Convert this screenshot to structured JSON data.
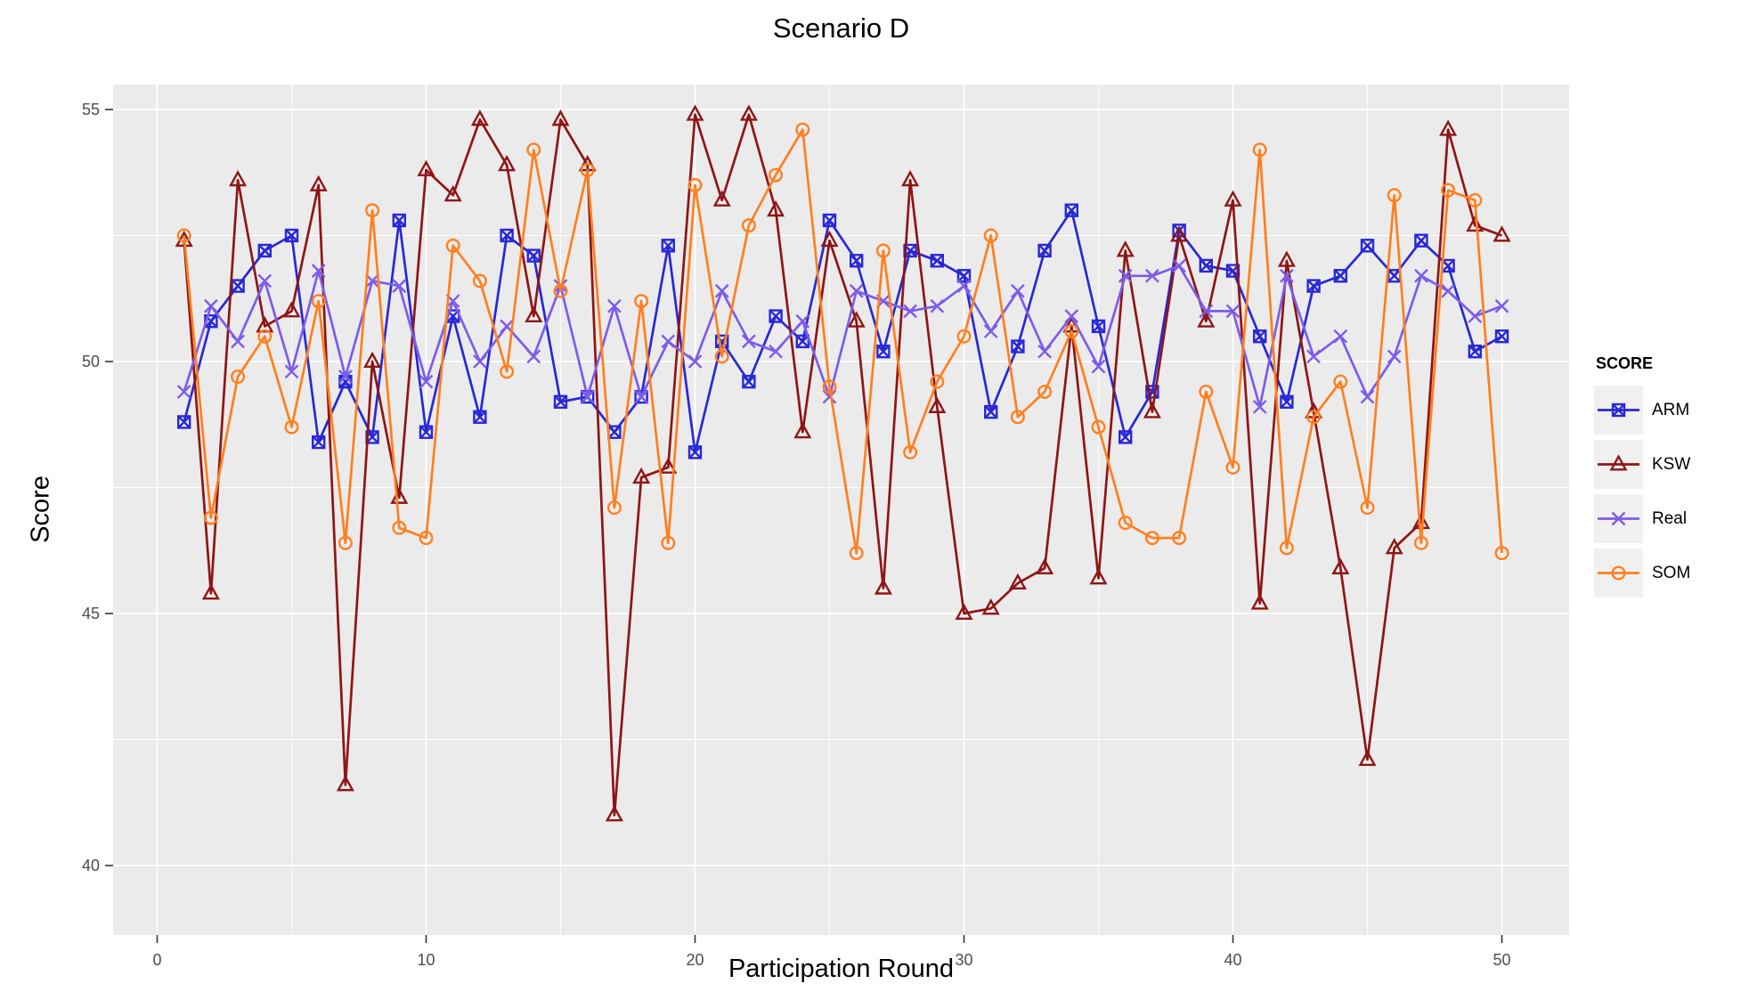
{
  "title": "Scenario D",
  "x_axis": {
    "label": "Participation Round",
    "ticks": [
      0,
      10,
      20,
      30,
      40,
      50
    ],
    "minor_ticks": [
      5,
      15,
      25,
      35,
      45
    ],
    "range": [
      -1.6,
      52.5
    ]
  },
  "y_axis": {
    "label": "Score",
    "ticks": [
      40,
      45,
      50,
      55
    ],
    "minor_ticks": [
      42.5,
      47.5,
      52.5
    ],
    "range": [
      38.6,
      55.5
    ]
  },
  "legend": {
    "title": "SCORE",
    "position": "right"
  },
  "style": {
    "panel_background": "#EBEBEB",
    "grid_color": "#FFFFFF",
    "tick_mark_color": "#333333",
    "tick_label_color": "#4D4D4D",
    "legend_key_background": "#F0F0F0"
  },
  "chart_data": {
    "type": "line",
    "title": "Scenario D",
    "xlabel": "Participation Round",
    "ylabel": "Score",
    "xlim": [
      -1.6,
      52.5
    ],
    "ylim": [
      38.6,
      55.5
    ],
    "grid": true,
    "legend_position": "right",
    "x": [
      1,
      2,
      3,
      4,
      5,
      6,
      7,
      8,
      9,
      10,
      11,
      12,
      13,
      14,
      15,
      16,
      17,
      18,
      19,
      20,
      21,
      22,
      23,
      24,
      25,
      26,
      27,
      28,
      29,
      30,
      31,
      32,
      33,
      34,
      35,
      36,
      37,
      38,
      39,
      40,
      41,
      42,
      43,
      44,
      45,
      46,
      47,
      48,
      49,
      50
    ],
    "series": [
      {
        "name": "ARM",
        "color": "#2828D8",
        "marker": "square-x",
        "values": [
          48.8,
          50.8,
          51.5,
          52.2,
          52.5,
          48.4,
          49.6,
          48.5,
          52.8,
          48.6,
          50.9,
          48.9,
          52.5,
          52.1,
          49.2,
          49.3,
          48.6,
          49.3,
          52.3,
          48.2,
          50.4,
          49.6,
          50.9,
          50.4,
          52.8,
          52.0,
          50.2,
          52.2,
          52.0,
          51.7,
          49.0,
          50.3,
          52.2,
          53.0,
          50.7,
          48.5,
          49.4,
          52.6,
          51.9,
          51.8,
          50.5,
          49.2,
          51.5,
          51.7,
          52.3,
          51.7,
          52.4,
          51.9,
          50.2,
          50.5
        ]
      },
      {
        "name": "KSW",
        "color": "#8F1515",
        "marker": "triangle",
        "values": [
          52.4,
          45.4,
          53.6,
          50.7,
          51.0,
          53.5,
          41.6,
          50.0,
          47.3,
          53.8,
          53.3,
          54.8,
          53.9,
          50.9,
          54.8,
          53.9,
          41.0,
          47.7,
          47.9,
          54.9,
          53.2,
          54.9,
          53.0,
          48.6,
          52.4,
          50.8,
          45.5,
          53.6,
          49.1,
          45.0,
          45.1,
          45.6,
          45.9,
          50.7,
          45.7,
          52.2,
          49.0,
          52.5,
          50.8,
          53.2,
          45.2,
          52.0,
          49.0,
          45.9,
          42.1,
          46.3,
          46.8,
          54.6,
          52.7,
          52.5
        ]
      },
      {
        "name": "Real",
        "color": "#7D5CEA",
        "marker": "x",
        "values": [
          49.4,
          51.1,
          50.4,
          51.6,
          49.8,
          51.8,
          49.7,
          51.6,
          51.5,
          49.6,
          51.2,
          50.0,
          50.7,
          50.1,
          51.5,
          49.3,
          51.1,
          49.3,
          50.4,
          50.0,
          51.4,
          50.4,
          50.2,
          50.8,
          49.3,
          51.4,
          51.2,
          51.0,
          51.1,
          51.5,
          50.6,
          51.4,
          50.2,
          50.9,
          49.9,
          51.7,
          51.7,
          51.9,
          51.0,
          51.0,
          49.1,
          51.7,
          50.1,
          50.5,
          49.3,
          50.1,
          51.7,
          51.4,
          50.9,
          51.1
        ]
      },
      {
        "name": "SOM",
        "color": "#FF7F1E",
        "marker": "circle",
        "values": [
          52.5,
          46.9,
          49.7,
          50.5,
          48.7,
          51.2,
          46.4,
          53.0,
          46.7,
          46.5,
          52.3,
          51.6,
          49.8,
          54.2,
          51.4,
          53.8,
          47.1,
          51.2,
          46.4,
          53.5,
          50.1,
          52.7,
          53.7,
          54.6,
          49.5,
          46.2,
          52.2,
          48.2,
          49.6,
          50.5,
          52.5,
          48.9,
          49.4,
          50.6,
          48.7,
          46.8,
          46.5,
          46.5,
          49.4,
          47.9,
          54.2,
          46.3,
          48.9,
          49.6,
          47.1,
          53.3,
          46.4,
          53.4,
          53.2,
          46.2
        ]
      }
    ]
  }
}
